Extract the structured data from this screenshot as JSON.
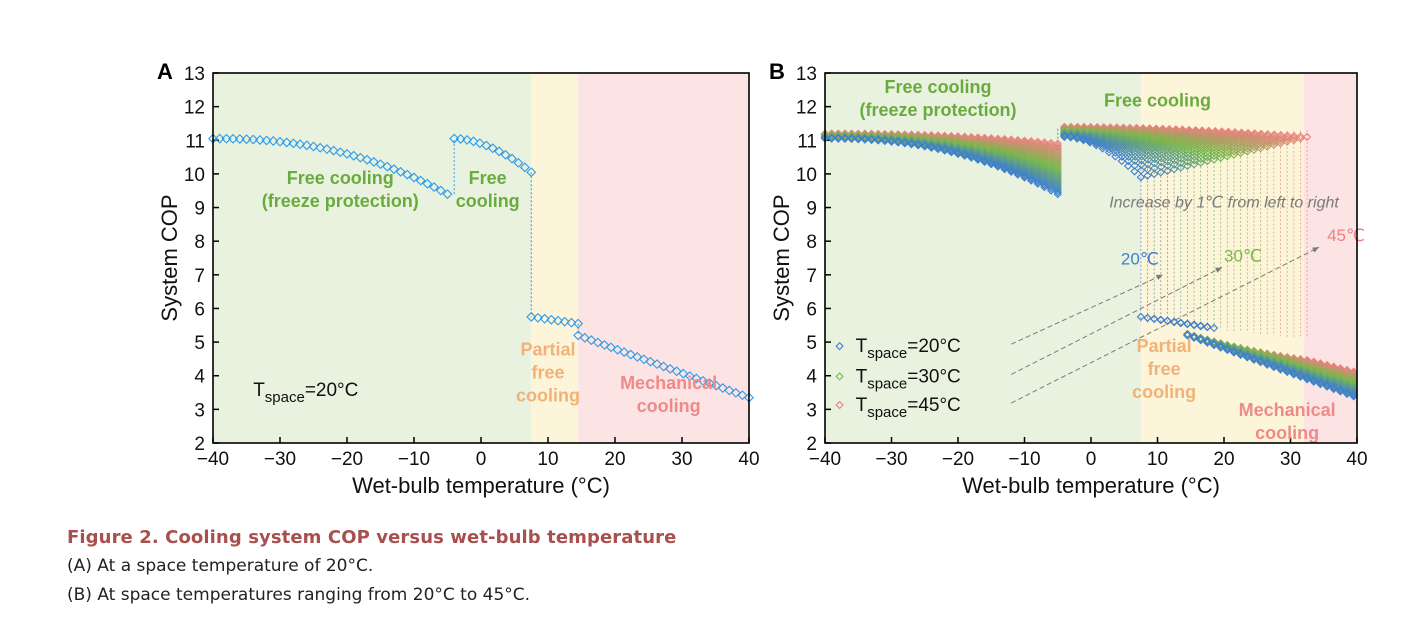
{
  "caption": {
    "title": "Figure 2.  Cooling system COP versus wet-bulb temperature",
    "line_a": "(A) At a space temperature of 20°C.",
    "line_b": "(B) At space temperatures ranging from 20°C to 45°C."
  },
  "colors": {
    "free_region": "#e9f2df",
    "partial_region": "#fdf5d9",
    "mech_region": "#fde4e4",
    "free_label": "#6aab3e",
    "partial_label": "#f2b277",
    "mech_label": "#ee8a8a",
    "marker_blue": "#2f9be8",
    "t20": "#3f7fd0",
    "t30": "#7ab84b",
    "t45": "#ef7f80",
    "annotation_grey": "#7a7a7a"
  },
  "chart_data": [
    {
      "panel": "A",
      "type": "scatter",
      "xlabel": "Wet-bulb temperature (°C)",
      "ylabel": "System COP",
      "xlim": [
        -40,
        40
      ],
      "ylim": [
        2,
        13
      ],
      "xticks": [
        -40,
        -30,
        -20,
        -10,
        0,
        10,
        20,
        30,
        40
      ],
      "yticks": [
        2,
        3,
        4,
        5,
        6,
        7,
        8,
        9,
        10,
        11,
        12,
        13
      ],
      "regions": [
        {
          "name": "free",
          "from": -40,
          "to": 7.5
        },
        {
          "name": "partial",
          "from": 7.5,
          "to": 14.5
        },
        {
          "name": "mechanical",
          "from": 14.5,
          "to": 40
        }
      ],
      "region_labels": [
        {
          "lines": [
            "Free cooling",
            "(freeze protection)"
          ],
          "x": -21,
          "y": 9.7,
          "color": "free_label"
        },
        {
          "lines": [
            "Free",
            "cooling"
          ],
          "x": 1,
          "y": 9.7,
          "color": "free_label"
        },
        {
          "lines": [
            "Partial",
            "free",
            "cooling"
          ],
          "x": 10,
          "y": 4.6,
          "color": "partial_label"
        },
        {
          "lines": [
            "Mechanical",
            "cooling"
          ],
          "x": 28,
          "y": 3.6,
          "color": "mech_label"
        }
      ],
      "series_label": {
        "prefix": "T",
        "sub": "space",
        "suffix": "=20°C",
        "x": -34,
        "y": 3.4
      },
      "series": [
        {
          "segments": [
            {
              "x_start": -40,
              "x_end": -5,
              "y_start": 11.05,
              "y_end": 9.4,
              "shape": "freeze"
            },
            {
              "x_start": -4,
              "x_end": 7.5,
              "y_start": 11.05,
              "y_end": 10.05,
              "shape": "free"
            },
            {
              "x_start": 7.5,
              "x_end": 14.5,
              "y_start": 5.75,
              "y_end": 5.55,
              "shape": "linear"
            },
            {
              "x_start": 14.5,
              "x_end": 40,
              "y_start": 5.2,
              "y_end": 3.35,
              "shape": "linear"
            }
          ]
        }
      ],
      "step_lines": [
        {
          "x": -4,
          "y_from": 9.4,
          "y_to": 11.05
        },
        {
          "x": 7.5,
          "y_from": 10.05,
          "y_to": 5.75
        },
        {
          "x": 14.5,
          "y_from": 5.55,
          "y_to": 5.2
        }
      ]
    },
    {
      "panel": "B",
      "type": "scatter",
      "xlabel": "Wet-bulb temperature (°C)",
      "ylabel": "System COP",
      "xlim": [
        -40,
        40
      ],
      "ylim": [
        2,
        13
      ],
      "xticks": [
        -40,
        -30,
        -20,
        -10,
        0,
        10,
        20,
        30,
        40
      ],
      "yticks": [
        2,
        3,
        4,
        5,
        6,
        7,
        8,
        9,
        10,
        11,
        12,
        13
      ],
      "regions": [
        {
          "name": "free",
          "from": -40,
          "to": 7.5
        },
        {
          "name": "partial",
          "from": 7.5,
          "to": 32
        },
        {
          "name": "mechanical",
          "from": 32,
          "to": 40
        }
      ],
      "region_labels": [
        {
          "lines": [
            "Free cooling",
            "(freeze protection)"
          ],
          "x": -23,
          "y": 12.4,
          "color": "free_label"
        },
        {
          "lines": [
            "Free cooling"
          ],
          "x": 10,
          "y": 12.0,
          "color": "free_label"
        },
        {
          "lines": [
            "Partial",
            "free",
            "cooling"
          ],
          "x": 11,
          "y": 4.7,
          "color": "partial_label"
        },
        {
          "lines": [
            "Mechanical",
            "cooling"
          ],
          "x": 29.5,
          "y": 2.8,
          "color": "mech_label"
        }
      ],
      "annotation": "Increase by 1℃ from left to right",
      "temp_labels": [
        {
          "text": "20℃",
          "color": "t20",
          "x": 4.5,
          "y": 7.3
        },
        {
          "text": "30℃",
          "color": "t30",
          "x": 20,
          "y": 7.4
        },
        {
          "text": "45℃",
          "color": "t45",
          "x": 35.5,
          "y": 8.0
        }
      ],
      "legend": [
        {
          "prefix": "T",
          "sub": "space",
          "suffix": "=20°C",
          "color": "t20"
        },
        {
          "prefix": "T",
          "sub": "space",
          "suffix": "=30°C",
          "color": "t30"
        },
        {
          "prefix": "T",
          "sub": "space",
          "suffix": "=45°C",
          "color": "t45"
        }
      ],
      "legend_position": "bottom-left",
      "family": {
        "t_space_from": 20,
        "t_space_to": 45,
        "step": 1,
        "switch_x_from": 7.5,
        "switch_x_to": 32.5,
        "freeze_end_x": -5,
        "free_start_x": -4
      }
    }
  ]
}
